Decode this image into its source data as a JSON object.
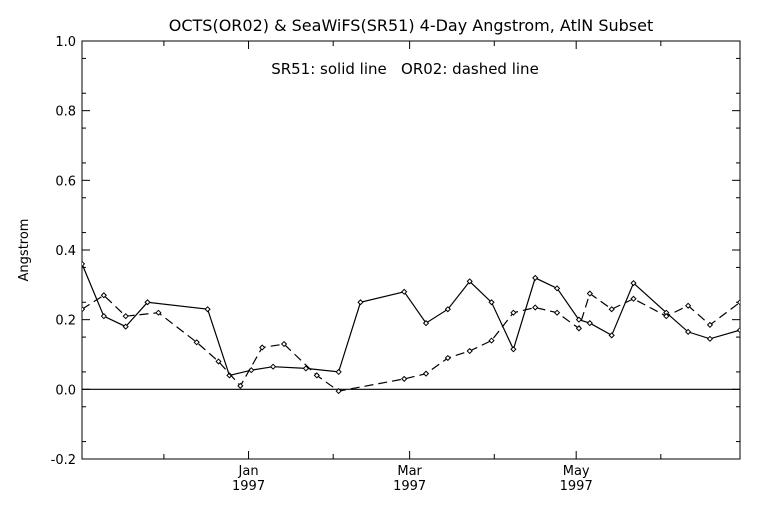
{
  "chart_data": {
    "type": "line",
    "title": "OCTS(OR02) & SeaWiFS(SR51) 4-Day Angstrom, AtlN Subset",
    "annotation": "SR51: solid line   OR02: dashed line",
    "ylabel": "Angstrom",
    "xlabel": "",
    "xlim": [
      "1996-11-01",
      "1997-06-30"
    ],
    "ylim": [
      -0.2,
      1.0
    ],
    "yticks": [
      {
        "value": -0.2,
        "label": "-0.2"
      },
      {
        "value": 0.0,
        "label": "0.0"
      },
      {
        "value": 0.2,
        "label": "0.2"
      },
      {
        "value": 0.4,
        "label": "0.4"
      },
      {
        "value": 0.6,
        "label": "0.6"
      },
      {
        "value": 0.8,
        "label": "0.8"
      },
      {
        "value": 1.0,
        "label": "1.0"
      }
    ],
    "xticks": [
      {
        "date": "1997-01-01",
        "label": "Jan",
        "year": "1997"
      },
      {
        "date": "1997-03-01",
        "label": "Mar",
        "year": "1997"
      },
      {
        "date": "1997-05-01",
        "label": "May",
        "year": "1997"
      }
    ],
    "zero_line": true,
    "grid": false,
    "series": [
      {
        "name": "SR51",
        "style": "solid",
        "color": "#000000",
        "x": [
          "1996-11-01",
          "1996-11-09",
          "1996-11-17",
          "1996-11-25",
          "1996-12-17",
          "1996-12-25",
          "1997-01-02",
          "1997-01-10",
          "1997-01-22",
          "1997-02-03",
          "1997-02-11",
          "1997-02-27",
          "1997-03-07",
          "1997-03-15",
          "1997-03-23",
          "1997-03-31",
          "1997-04-08",
          "1997-04-16",
          "1997-04-24",
          "1997-05-02",
          "1997-05-06",
          "1997-05-14",
          "1997-05-22",
          "1997-06-03",
          "1997-06-11",
          "1997-06-19",
          "1997-06-30"
        ],
        "values": [
          0.36,
          0.21,
          0.18,
          0.25,
          0.23,
          0.04,
          0.055,
          0.065,
          0.06,
          0.05,
          0.25,
          0.28,
          0.19,
          0.23,
          0.31,
          0.25,
          0.115,
          0.32,
          0.29,
          0.2,
          0.19,
          0.155,
          0.305,
          0.22,
          0.165,
          0.145,
          0.17
        ]
      },
      {
        "name": "OR02",
        "style": "dashed",
        "color": "#000000",
        "x": [
          "1996-11-01",
          "1996-11-09",
          "1996-11-17",
          "1996-11-29",
          "1996-12-13",
          "1996-12-21",
          "1996-12-29",
          "1997-01-06",
          "1997-01-14",
          "1997-01-26",
          "1997-02-03",
          "1997-02-27",
          "1997-03-07",
          "1997-03-15",
          "1997-03-23",
          "1997-03-31",
          "1997-04-08",
          "1997-04-16",
          "1997-04-24",
          "1997-05-02",
          "1997-05-06",
          "1997-05-14",
          "1997-05-22",
          "1997-06-03",
          "1997-06-11",
          "1997-06-19",
          "1997-06-30"
        ],
        "values": [
          0.23,
          0.27,
          0.21,
          0.22,
          0.135,
          0.08,
          0.01,
          0.12,
          0.13,
          0.04,
          -0.005,
          0.03,
          0.045,
          0.09,
          0.11,
          0.14,
          0.22,
          0.235,
          0.22,
          0.175,
          0.275,
          0.23,
          0.26,
          0.21,
          0.24,
          0.185,
          0.25
        ]
      }
    ]
  }
}
